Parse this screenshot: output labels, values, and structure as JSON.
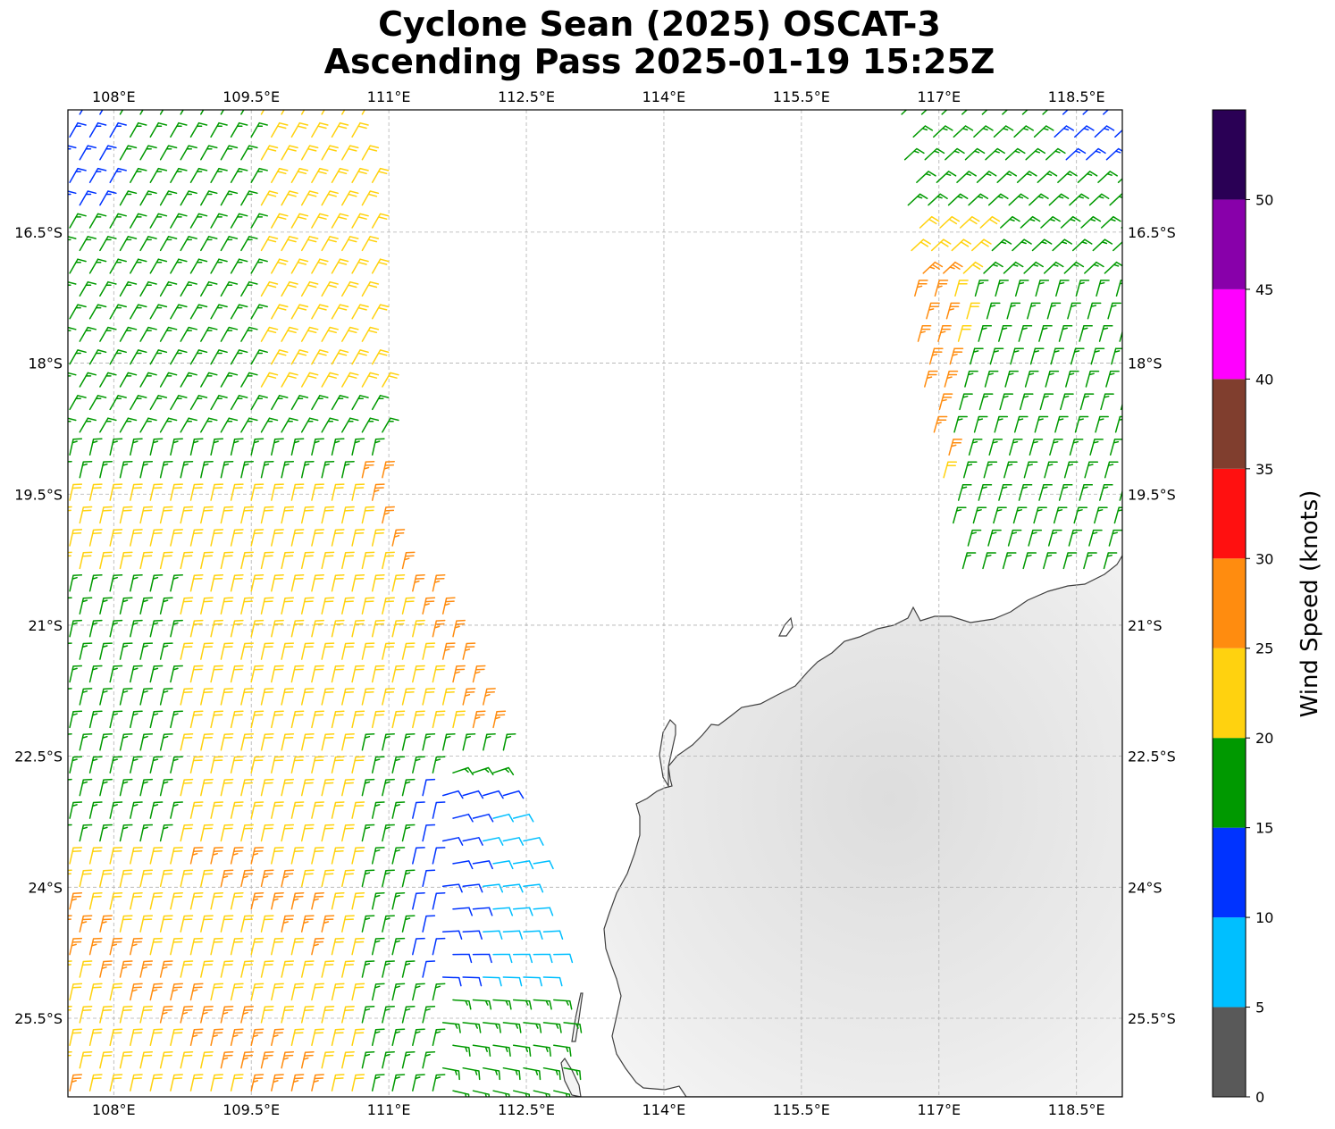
{
  "title": {
    "line1": "Cyclone Sean (2025) OSCAT-3",
    "line2": "Ascending Pass 2025-01-19 15:25Z"
  },
  "map": {
    "lon_range": [
      107.5,
      119.0
    ],
    "lat_range": [
      -26.4,
      -15.1
    ],
    "lon_ticks": [
      {
        "value": 108.0,
        "label": "108°E"
      },
      {
        "value": 109.5,
        "label": "109.5°E"
      },
      {
        "value": 111.0,
        "label": "111°E"
      },
      {
        "value": 112.5,
        "label": "112.5°E"
      },
      {
        "value": 114.0,
        "label": "114°E"
      },
      {
        "value": 115.5,
        "label": "115.5°E"
      },
      {
        "value": 117.0,
        "label": "117°E"
      },
      {
        "value": 118.5,
        "label": "118.5°E"
      }
    ],
    "lat_ticks": [
      {
        "value": -16.5,
        "label": "16.5°S"
      },
      {
        "value": -18.0,
        "label": "18°S"
      },
      {
        "value": -19.5,
        "label": "19.5°S"
      },
      {
        "value": -21.0,
        "label": "21°S"
      },
      {
        "value": -22.5,
        "label": "22.5°S"
      },
      {
        "value": -24.0,
        "label": "24°S"
      },
      {
        "value": -25.5,
        "label": "25.5°S"
      }
    ],
    "gridlines": true,
    "coastline_color": "#404040",
    "land_shading": "light-gray-satellite"
  },
  "colorbar": {
    "label": "Wind Speed (knots)",
    "ticks": [
      "0",
      "5",
      "10",
      "15",
      "20",
      "25",
      "30",
      "35",
      "40",
      "45",
      "50"
    ],
    "bins": [
      {
        "min": 0,
        "max": 5,
        "color": "#595959"
      },
      {
        "min": 5,
        "max": 10,
        "color": "#00bfff"
      },
      {
        "min": 10,
        "max": 15,
        "color": "#0033ff"
      },
      {
        "min": 15,
        "max": 20,
        "color": "#009900"
      },
      {
        "min": 20,
        "max": 25,
        "color": "#ffd20f"
      },
      {
        "min": 25,
        "max": 30,
        "color": "#ff8c0f"
      },
      {
        "min": 30,
        "max": 35,
        "color": "#ff1010"
      },
      {
        "min": 35,
        "max": 40,
        "color": "#803e2e"
      },
      {
        "min": 40,
        "max": 45,
        "color": "#ff00ff"
      },
      {
        "min": 45,
        "max": 50,
        "color": "#8800aa"
      },
      {
        "min": 50,
        "max": 55,
        "color": "#2a0055"
      }
    ]
  },
  "chart_data": {
    "type": "wind-barb-map",
    "variable": "Wind Speed (knots)",
    "swaths": [
      {
        "side": "west",
        "lon_east_edge_approx": [
          [
            -15.1,
            110.8
          ],
          [
            -19.5,
            111.0
          ],
          [
            -22.5,
            112.3
          ],
          [
            -25.5,
            113.0
          ]
        ],
        "speed_range_kt": [
          5,
          30
        ]
      },
      {
        "side": "east",
        "lon_west_edge_approx": [
          [
            -15.1,
            116.7
          ],
          [
            -18.0,
            116.9
          ],
          [
            -20.5,
            117.4
          ]
        ],
        "speed_range_kt": [
          15,
          30
        ]
      }
    ],
    "regions": [
      {
        "area": "west swath north",
        "speed_kt": 17
      },
      {
        "area": "west swath central",
        "speed_kt": 22
      },
      {
        "area": "west swath east edge near 19.5S-21.5S",
        "speed_kt": 27
      },
      {
        "area": "west swath south near 24S-26S, 108E-110E",
        "speed_kt": 26
      },
      {
        "area": "near coast 23S-25S, 111E-113E",
        "speed_kt": 8
      },
      {
        "area": "east swath west edge near 17S-19S",
        "speed_kt": 27
      },
      {
        "area": "east swath central",
        "speed_kt": 22
      },
      {
        "area": "east swath east edge",
        "speed_kt": 17
      }
    ]
  }
}
